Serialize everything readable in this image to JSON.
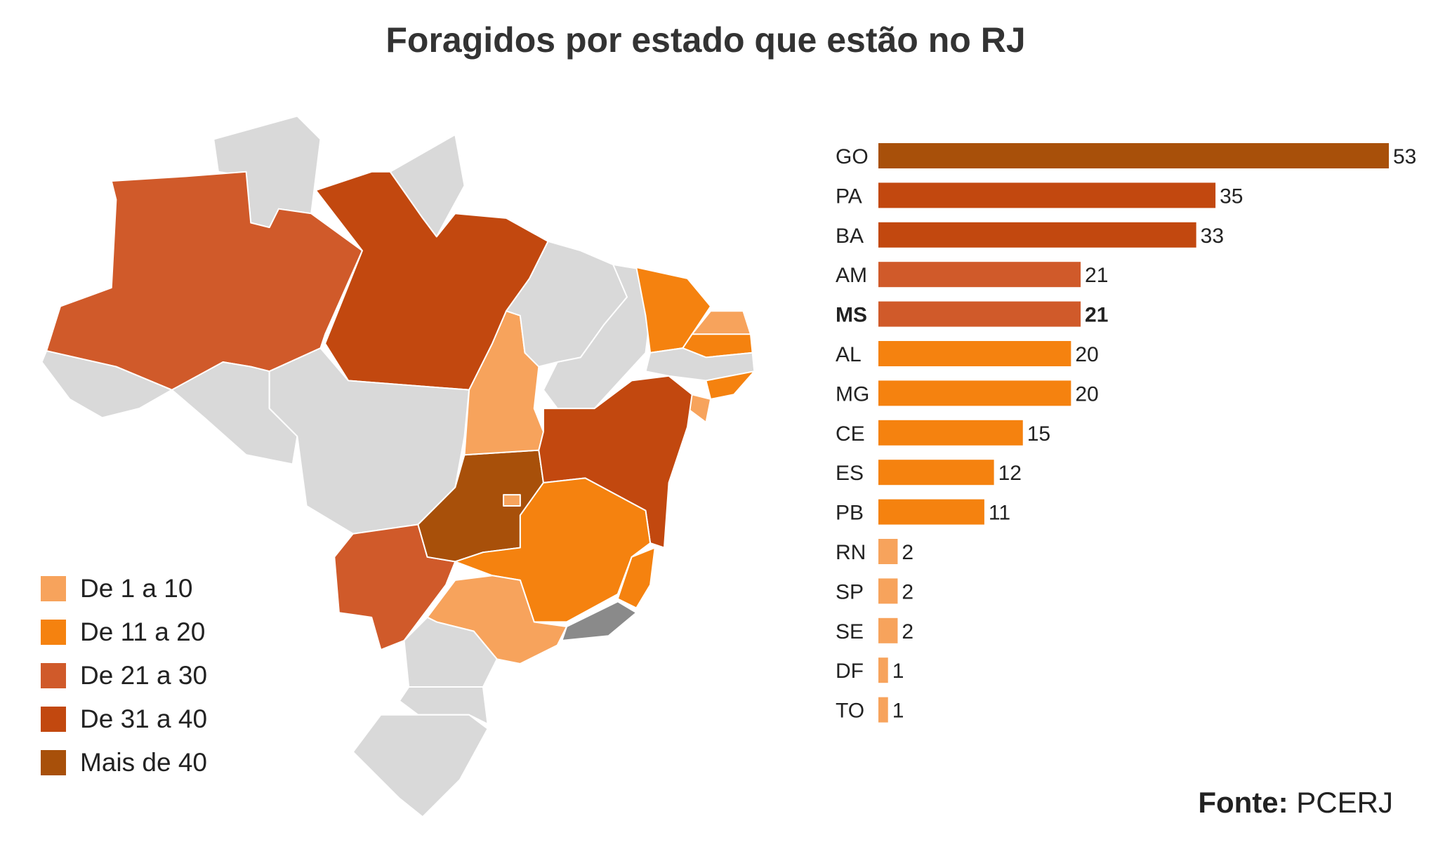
{
  "title": "Foragidos por estado que estão no RJ",
  "colors": {
    "de_1_a_10": "#F7A35C",
    "de_11_a_20": "#F5820F",
    "de_21_a_30": "#D05A2A",
    "de_31_a_40": "#C2480F",
    "mais_de_40": "#A8500A",
    "no_data": "#D9D9D9",
    "rj": "#8A8A8A"
  },
  "legend": [
    {
      "label": "De 1 a 10",
      "color": "#F7A35C"
    },
    {
      "label": "De 11 a 20",
      "color": "#F5820F"
    },
    {
      "label": "De 21 a 30",
      "color": "#D05A2A"
    },
    {
      "label": "De 31 a 40",
      "color": "#C2480F"
    },
    {
      "label": "Mais de 40",
      "color": "#A8500A"
    }
  ],
  "chart_data": {
    "type": "bar",
    "orientation": "horizontal",
    "title": "Foragidos por estado que estão no RJ",
    "categories": [
      "GO",
      "PA",
      "BA",
      "AM",
      "MS",
      "AL",
      "MG",
      "CE",
      "ES",
      "PB",
      "RN",
      "SP",
      "SE",
      "DF",
      "TO"
    ],
    "values": [
      53,
      35,
      33,
      21,
      21,
      20,
      20,
      15,
      12,
      11,
      2,
      2,
      2,
      1,
      1
    ],
    "highlighted": "MS",
    "xlabel": "",
    "ylabel": "",
    "xlim": [
      0,
      53
    ],
    "grid": false
  },
  "source": {
    "label": "Fonte:",
    "value": "PCERJ"
  }
}
